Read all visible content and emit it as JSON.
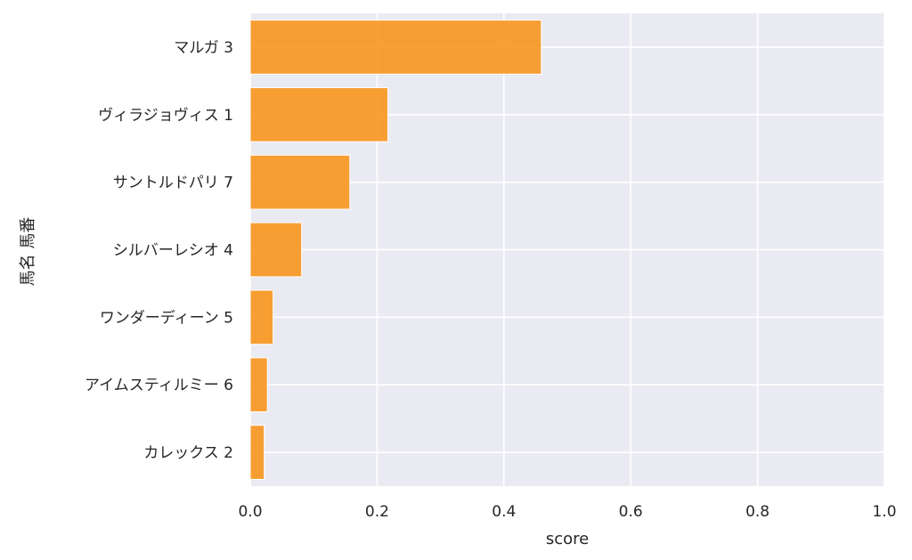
{
  "chart_data": {
    "type": "bar",
    "orientation": "horizontal",
    "categories": [
      "マルガ 3",
      "ヴィラジョヴィス 1",
      "サントルドパリ 7",
      "シルバーレシオ 4",
      "ワンダーディーン 5",
      "アイムスティルミー 6",
      "カレックス 2"
    ],
    "values": [
      0.459,
      0.217,
      0.157,
      0.081,
      0.036,
      0.027,
      0.022
    ],
    "xlabel": "score",
    "ylabel": "馬名 馬番",
    "xlim": [
      0,
      1.0
    ],
    "xticks": [
      "0.0",
      "0.2",
      "0.4",
      "0.6",
      "0.8",
      "1.0"
    ],
    "xtick_values": [
      0,
      0.2,
      0.4,
      0.6,
      0.8,
      1.0
    ],
    "grid": true,
    "legend": "none",
    "colors": {
      "bar": "#F8961E",
      "bar_edge": "#ffffff",
      "background": "#EAEAF2",
      "grid": "#ffffff",
      "text": "#262626"
    }
  }
}
